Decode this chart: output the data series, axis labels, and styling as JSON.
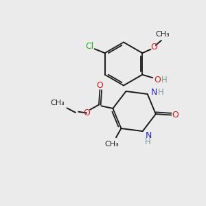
{
  "background_color": "#ebebeb",
  "bond_color": "#1a1a1a",
  "N_color": "#2323cc",
  "O_color": "#cc2020",
  "Cl_color": "#22aa22",
  "H_color": "#7a9a9a",
  "figsize": [
    3.0,
    3.0
  ],
  "dpi": 100,
  "xlim": [
    0,
    10
  ],
  "ylim": [
    0,
    10
  ]
}
